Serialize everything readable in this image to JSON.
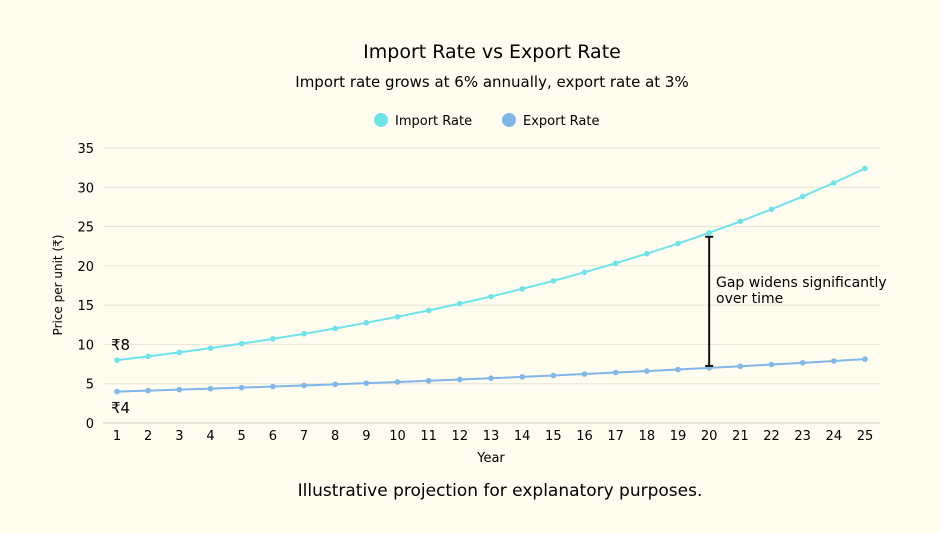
{
  "chart_data": {
    "type": "line",
    "title": "Import Rate vs Export Rate",
    "subtitle": "Import rate grows at 6% annually, export rate at 3%",
    "xlabel": "Year",
    "ylabel": "Price per unit (₹)",
    "footer": "Illustrative projection for explanatory purposes.",
    "x": [
      1,
      2,
      3,
      4,
      5,
      6,
      7,
      8,
      9,
      10,
      11,
      12,
      13,
      14,
      15,
      16,
      17,
      18,
      19,
      20,
      21,
      22,
      23,
      24,
      25
    ],
    "xlim": [
      1,
      25
    ],
    "ylim": [
      0,
      35
    ],
    "yticks": [
      0,
      5,
      10,
      15,
      20,
      25,
      30,
      35
    ],
    "grid": true,
    "legend_position": "top",
    "series": [
      {
        "name": "Import Rate",
        "color": "#6fe3e9",
        "values": [
          8.0,
          8.48,
          8.99,
          9.53,
          10.1,
          10.71,
          11.35,
          12.03,
          12.75,
          13.52,
          14.33,
          15.19,
          16.1,
          17.07,
          18.09,
          19.18,
          20.33,
          21.55,
          22.84,
          24.21,
          25.66,
          27.2,
          28.83,
          30.56,
          32.4
        ]
      },
      {
        "name": "Export Rate",
        "color": "#80b6e8",
        "values": [
          4.0,
          4.12,
          4.24,
          4.37,
          4.5,
          4.64,
          4.78,
          4.92,
          5.07,
          5.22,
          5.38,
          5.54,
          5.7,
          5.87,
          6.05,
          6.23,
          6.42,
          6.61,
          6.81,
          7.01,
          7.22,
          7.44,
          7.66,
          7.89,
          8.13
        ]
      }
    ],
    "annotations": {
      "start_import": "₹8",
      "start_export": "₹4",
      "gap_year": 20,
      "gap_text_line1": "Gap widens significantly",
      "gap_text_line2": "over time"
    }
  }
}
